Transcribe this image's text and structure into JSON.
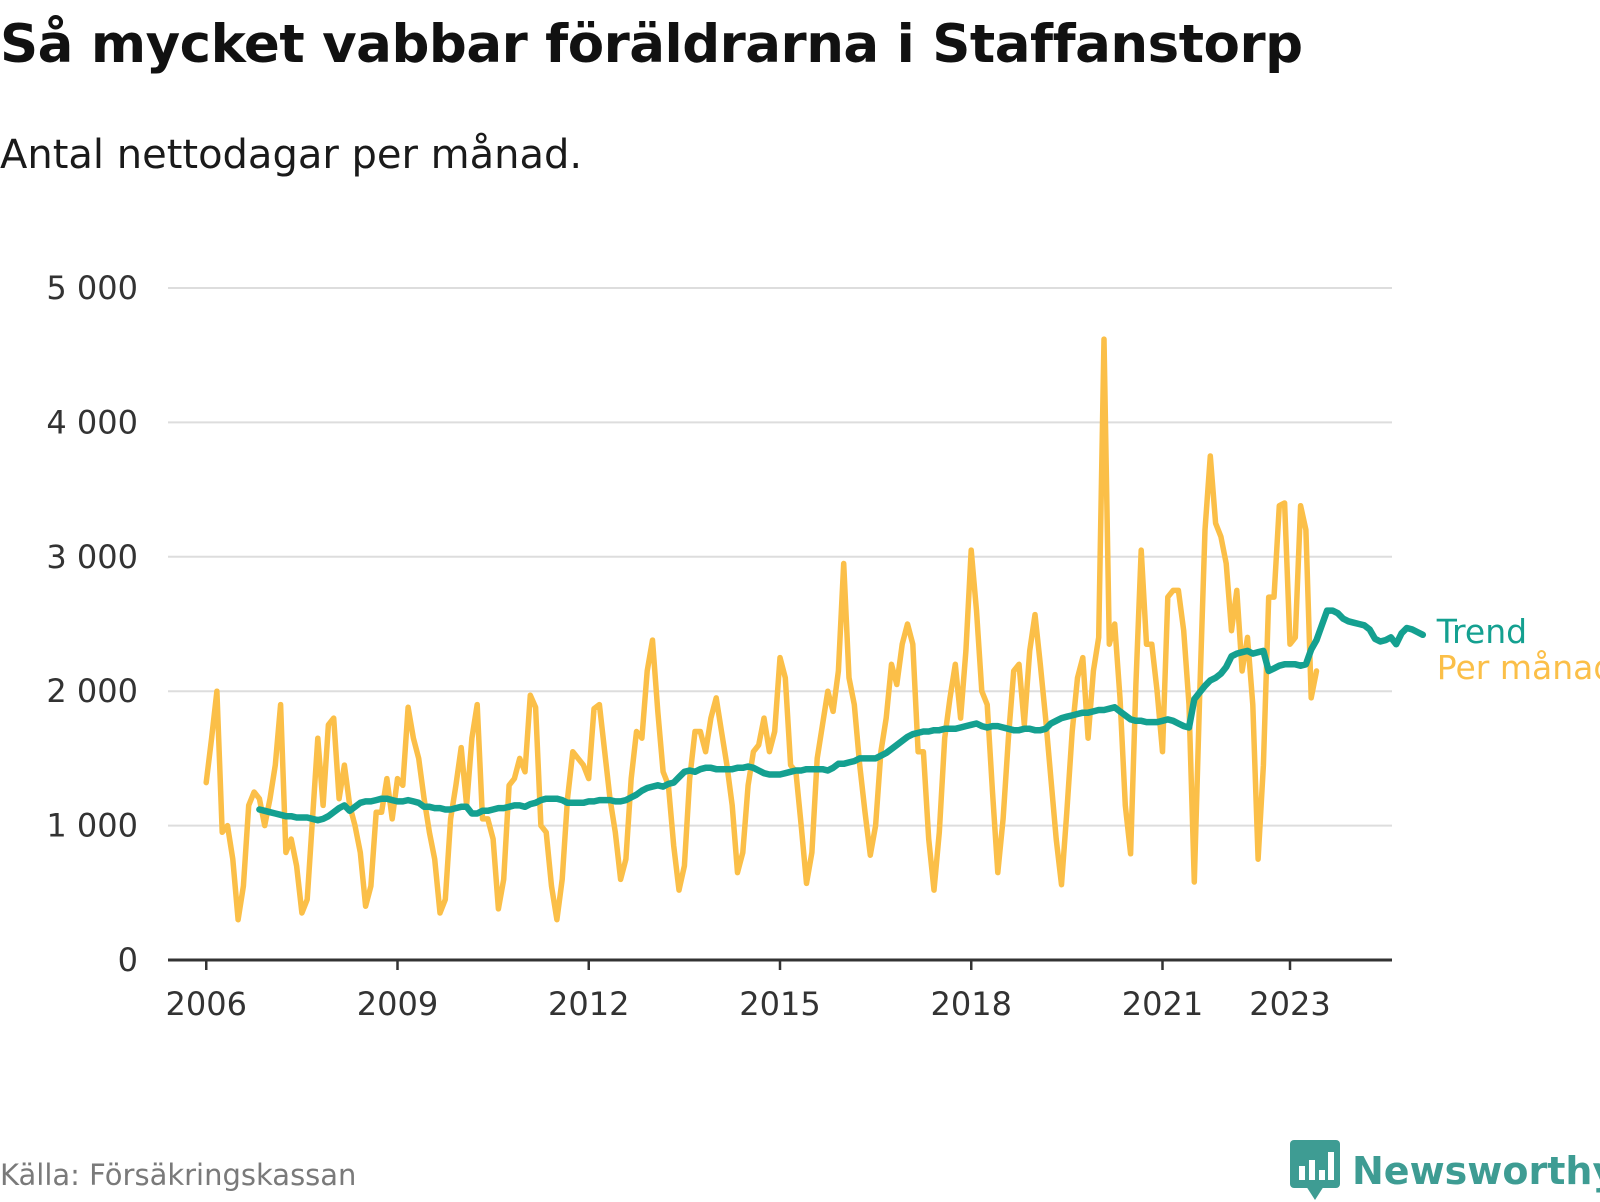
{
  "title": "Så mycket vabbar föräldrarna i Staffanstorp",
  "subtitle": "Antal nettodagar per månad.",
  "source": "Källa: Försäkringskassan",
  "brand": "Newsworthy",
  "brand_icon": "chat-bar-chart-icon",
  "colors": {
    "trend": "#14a090",
    "monthly": "#fbbf48",
    "grid": "#dddddd",
    "axis": "#333333",
    "brand": "#3e9c93"
  },
  "chart_data": {
    "type": "line",
    "title": "Så mycket vabbar föräldrarna i Staffanstorp",
    "subtitle": "Antal nettodagar per månad.",
    "xlabel": "",
    "ylabel": "",
    "x_unit": "year (decimal)",
    "xlim": [
      2005.4,
      2024.6
    ],
    "ylim": [
      0,
      5000
    ],
    "x_ticks": [
      {
        "value": 2006,
        "label": "2006"
      },
      {
        "value": 2009,
        "label": "2009"
      },
      {
        "value": 2012,
        "label": "2012"
      },
      {
        "value": 2015,
        "label": "2015"
      },
      {
        "value": 2018,
        "label": "2018"
      },
      {
        "value": 2021,
        "label": "2021"
      },
      {
        "value": 2023,
        "label": "2023"
      }
    ],
    "y_ticks": [
      {
        "value": 0,
        "label": "0"
      },
      {
        "value": 1000,
        "label": "1 000"
      },
      {
        "value": 2000,
        "label": "2 000"
      },
      {
        "value": 3000,
        "label": "3 000"
      },
      {
        "value": 4000,
        "label": "4 000"
      },
      {
        "value": 5000,
        "label": "5 000"
      }
    ],
    "grid": true,
    "legend": "labels at right end of lines",
    "series": [
      {
        "name": "Per månad",
        "x_start": 2006.0,
        "step": 0.08333,
        "values": [
          1320,
          1650,
          2000,
          950,
          1000,
          750,
          300,
          550,
          1150,
          1250,
          1200,
          1000,
          1200,
          1450,
          1900,
          800,
          900,
          700,
          350,
          450,
          1050,
          1650,
          1150,
          1750,
          1800,
          1200,
          1450,
          1150,
          1000,
          800,
          400,
          550,
          1100,
          1100,
          1350,
          1050,
          1350,
          1300,
          1880,
          1650,
          1500,
          1200,
          950,
          750,
          350,
          450,
          1050,
          1300,
          1580,
          1150,
          1650,
          1900,
          1050,
          1050,
          900,
          380,
          600,
          1300,
          1350,
          1500,
          1400,
          1970,
          1880,
          1000,
          950,
          550,
          300,
          600,
          1200,
          1550,
          1500,
          1450,
          1350,
          1870,
          1900,
          1550,
          1200,
          950,
          600,
          750,
          1350,
          1700,
          1650,
          2150,
          2380,
          1850,
          1400,
          1300,
          850,
          520,
          700,
          1350,
          1700,
          1700,
          1550,
          1800,
          1950,
          1700,
          1450,
          1150,
          650,
          800,
          1300,
          1550,
          1600,
          1800,
          1550,
          1700,
          2250,
          2100,
          1450,
          1400,
          1000,
          570,
          800,
          1500,
          1750,
          2000,
          1850,
          2150,
          2950,
          2100,
          1900,
          1450,
          1100,
          780,
          1000,
          1550,
          1800,
          2200,
          2050,
          2350,
          2500,
          2350,
          1550,
          1550,
          900,
          520,
          950,
          1650,
          1950,
          2200,
          1800,
          2300,
          3050,
          2600,
          2000,
          1900,
          1250,
          650,
          1050,
          1650,
          2150,
          2200,
          1750,
          2300,
          2570,
          2200,
          1800,
          1350,
          900,
          560,
          1100,
          1700,
          2100,
          2250,
          1650,
          2150,
          2400,
          4620,
          2350,
          2500,
          1950,
          1150,
          790,
          2050,
          3050,
          2350,
          2350,
          2000,
          1550,
          2700,
          2750,
          2750,
          2450,
          1900,
          580,
          1950,
          3200,
          3750,
          3250,
          3150,
          2950,
          2450,
          2750,
          2150,
          2400,
          1900,
          750,
          1450,
          2700,
          2700,
          3380,
          3400,
          2350,
          2400,
          3380,
          3200,
          1950,
          2150
        ]
      },
      {
        "name": "Trend",
        "x_start": 2006.8333,
        "step": 0.08333,
        "values": [
          1120,
          1110,
          1100,
          1090,
          1080,
          1070,
          1070,
          1060,
          1060,
          1060,
          1050,
          1040,
          1050,
          1070,
          1100,
          1130,
          1150,
          1110,
          1140,
          1170,
          1180,
          1180,
          1190,
          1200,
          1200,
          1190,
          1180,
          1180,
          1190,
          1180,
          1170,
          1140,
          1140,
          1130,
          1130,
          1120,
          1120,
          1130,
          1140,
          1140,
          1090,
          1090,
          1110,
          1110,
          1120,
          1130,
          1130,
          1140,
          1150,
          1150,
          1140,
          1160,
          1170,
          1190,
          1200,
          1200,
          1200,
          1190,
          1170,
          1170,
          1170,
          1170,
          1180,
          1180,
          1190,
          1190,
          1190,
          1180,
          1180,
          1190,
          1210,
          1230,
          1260,
          1280,
          1290,
          1300,
          1290,
          1310,
          1320,
          1360,
          1400,
          1410,
          1400,
          1420,
          1430,
          1430,
          1420,
          1420,
          1420,
          1420,
          1430,
          1430,
          1440,
          1430,
          1410,
          1390,
          1380,
          1380,
          1380,
          1390,
          1400,
          1410,
          1410,
          1420,
          1420,
          1420,
          1420,
          1410,
          1430,
          1460,
          1460,
          1470,
          1480,
          1500,
          1500,
          1500,
          1500,
          1520,
          1540,
          1570,
          1600,
          1630,
          1660,
          1680,
          1690,
          1700,
          1700,
          1710,
          1710,
          1720,
          1720,
          1720,
          1730,
          1740,
          1750,
          1760,
          1740,
          1730,
          1740,
          1740,
          1730,
          1720,
          1710,
          1710,
          1720,
          1720,
          1710,
          1710,
          1720,
          1760,
          1780,
          1800,
          1810,
          1820,
          1830,
          1840,
          1840,
          1850,
          1860,
          1860,
          1870,
          1880,
          1850,
          1820,
          1790,
          1780,
          1780,
          1770,
          1770,
          1770,
          1780,
          1790,
          1780,
          1760,
          1740,
          1730,
          1940,
          1990,
          2040,
          2080,
          2100,
          2130,
          2180,
          2260,
          2280,
          2290,
          2300,
          2280,
          2290,
          2300,
          2150,
          2170,
          2190,
          2200,
          2200,
          2200,
          2190,
          2200,
          2310,
          2380,
          2490,
          2600,
          2600,
          2580,
          2540,
          2520,
          2510,
          2500,
          2490,
          2460,
          2390,
          2370,
          2380,
          2400,
          2350,
          2430,
          2470,
          2460,
          2440,
          2420
        ]
      }
    ]
  }
}
